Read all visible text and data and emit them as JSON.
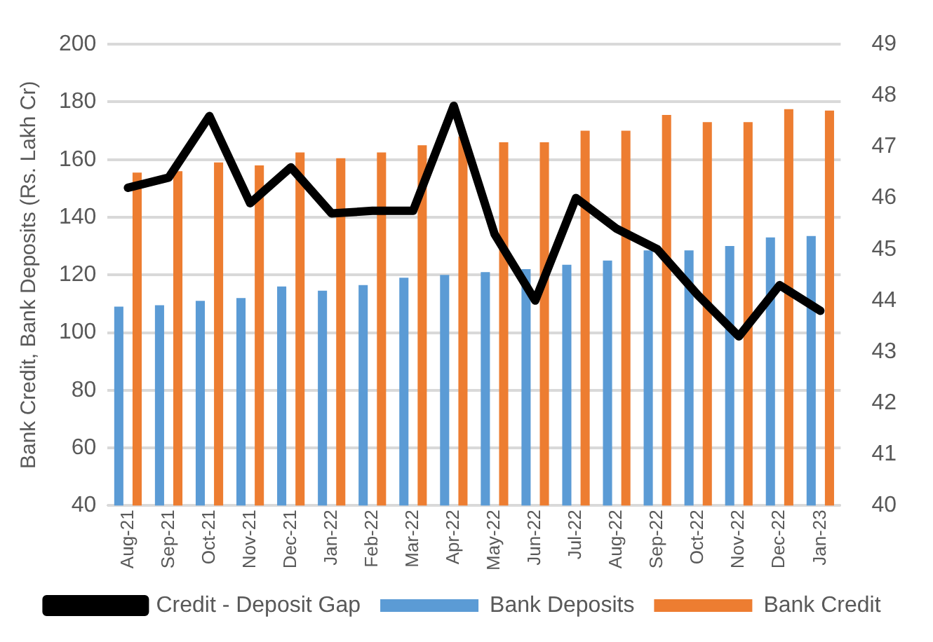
{
  "chart_data": {
    "type": "bar",
    "ylabel": "Bank Credit, Bank Deposits (Rs. Lakh Cr)",
    "categories": [
      "Aug-21",
      "Sep-21",
      "Oct-21",
      "Nov-21",
      "Dec-21",
      "Jan-22",
      "Feb-22",
      "Mar-22",
      "Apr-22",
      "May-22",
      "Jun-22",
      "Jul-22",
      "Aug-22",
      "Sep-22",
      "Oct-22",
      "Nov-22",
      "Dec-22",
      "Jan-23"
    ],
    "series": [
      {
        "name": "Bank Deposits",
        "color": "#5b9bd5",
        "values": [
          109,
          109.5,
          111,
          112,
          116,
          114.5,
          116.5,
          119,
          120,
          121,
          122,
          123.5,
          125,
          128.5,
          128.5,
          130,
          133,
          133.5
        ]
      },
      {
        "name": "Bank Credit",
        "color": "#ed7d31",
        "values": [
          155.5,
          156,
          159,
          158,
          162.5,
          160.5,
          162.5,
          165,
          168,
          166,
          166,
          170,
          170,
          175.5,
          173,
          173,
          177.5,
          177
        ]
      },
      {
        "name": "Credit - Deposit Gap",
        "type": "line",
        "axis": "y2",
        "color": "#000000",
        "values": [
          46.2,
          46.4,
          47.6,
          45.9,
          46.6,
          45.7,
          45.75,
          45.75,
          47.8,
          45.3,
          44.0,
          46.0,
          45.4,
          45.0,
          44.1,
          43.3,
          44.3,
          43.8
        ]
      }
    ],
    "ylim": [
      40,
      200
    ],
    "yticks": [
      40,
      60,
      80,
      100,
      120,
      140,
      160,
      180,
      200
    ],
    "y2lim": [
      40,
      49
    ],
    "y2ticks": [
      40,
      41,
      42,
      43,
      44,
      45,
      46,
      47,
      48,
      49
    ],
    "grid": "y",
    "legend": "bottom",
    "marker": "none",
    "line_style": "solid"
  }
}
